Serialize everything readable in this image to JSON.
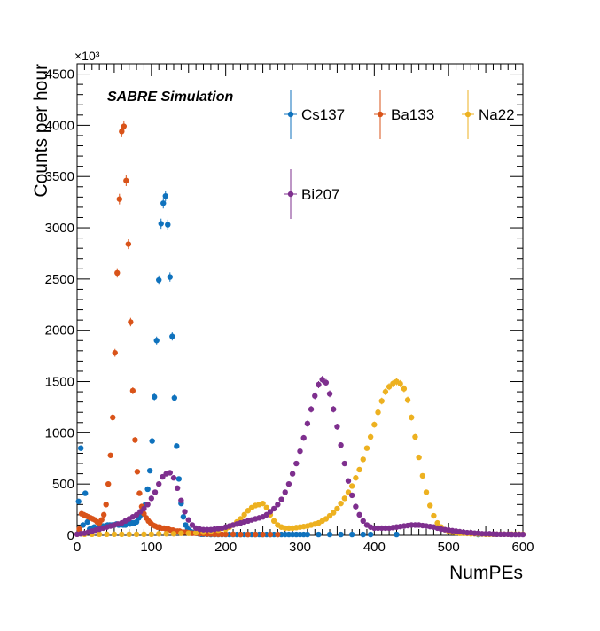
{
  "chart_data": {
    "type": "scatter",
    "title": "",
    "annotation": "SABRE Simulation",
    "xlabel": "NumPEs",
    "ylabel": "Counts per hour",
    "y_multiplier_label": "×10³",
    "xlim": [
      0,
      600
    ],
    "ylim": [
      0,
      4600
    ],
    "x_ticks": [
      0,
      100,
      200,
      300,
      400,
      500,
      600
    ],
    "y_ticks": [
      0,
      500,
      1000,
      1500,
      2000,
      2500,
      3000,
      3500,
      4000,
      4500
    ],
    "x_tick_labels": [
      "0",
      "100",
      "200",
      "300",
      "400",
      "500",
      "600"
    ],
    "y_tick_labels": [
      "0",
      "500",
      "1000",
      "1500",
      "2000",
      "2500",
      "3000",
      "3500",
      "4000",
      "4500"
    ],
    "grid": false,
    "legend_position": "top-right",
    "series": [
      {
        "name": "Cs137",
        "color": "#0f72bd",
        "x": [
          2,
          5,
          8,
          11,
          14,
          17,
          20,
          23,
          26,
          29,
          32,
          35,
          38,
          41,
          44,
          47,
          50,
          53,
          56,
          59,
          62,
          65,
          68,
          71,
          74,
          77,
          80,
          83,
          86,
          89,
          92,
          95,
          98,
          101,
          104,
          107,
          110,
          113,
          116,
          119,
          122,
          125,
          128,
          131,
          134,
          137,
          140,
          143,
          146,
          149,
          152,
          155,
          158,
          161,
          164,
          167,
          170,
          175,
          180,
          185,
          190,
          195,
          200,
          205,
          210,
          215,
          220,
          225,
          230,
          235,
          240,
          245,
          250,
          255,
          260,
          265,
          270,
          275,
          280,
          285,
          290,
          295,
          300,
          305,
          310,
          325,
          340,
          355,
          370,
          385,
          395,
          430,
          540
        ],
        "y": [
          330,
          850,
          100,
          410,
          130,
          60,
          70,
          80,
          60,
          80,
          80,
          90,
          90,
          100,
          100,
          100,
          100,
          110,
          100,
          110,
          100,
          100,
          120,
          110,
          120,
          120,
          130,
          170,
          200,
          280,
          300,
          450,
          630,
          920,
          1350,
          1900,
          2490,
          3040,
          3240,
          3310,
          3030,
          2520,
          1940,
          1340,
          870,
          550,
          310,
          180,
          100,
          60,
          40,
          30,
          25,
          20,
          15,
          10,
          10,
          10,
          8,
          8,
          8,
          8,
          8,
          8,
          8,
          8,
          8,
          8,
          8,
          8,
          8,
          8,
          8,
          8,
          8,
          8,
          8,
          8,
          8,
          8,
          8,
          8,
          8,
          8,
          8,
          8,
          8,
          8,
          8,
          8,
          8,
          8,
          8
        ]
      },
      {
        "name": "Ba133",
        "color": "#d95319",
        "x": [
          3,
          6,
          9,
          12,
          15,
          18,
          21,
          24,
          27,
          30,
          33,
          36,
          39,
          42,
          45,
          48,
          51,
          54,
          57,
          60,
          63,
          66,
          69,
          72,
          75,
          78,
          81,
          84,
          87,
          90,
          93,
          96,
          99,
          102,
          105,
          108,
          111,
          114,
          117,
          120,
          123,
          126,
          129,
          132,
          135,
          138,
          141,
          144,
          147,
          150,
          155,
          160,
          165,
          170,
          175,
          180,
          185,
          190,
          195,
          200,
          210,
          220,
          230,
          240,
          250,
          260,
          270
        ],
        "y": [
          60,
          210,
          200,
          190,
          180,
          170,
          160,
          150,
          130,
          120,
          150,
          200,
          300,
          500,
          780,
          1150,
          1780,
          2560,
          3280,
          3940,
          3990,
          3460,
          2840,
          2080,
          1410,
          930,
          620,
          410,
          280,
          210,
          170,
          140,
          120,
          100,
          90,
          80,
          80,
          70,
          70,
          60,
          60,
          50,
          50,
          40,
          40,
          40,
          30,
          30,
          30,
          25,
          20,
          20,
          15,
          15,
          12,
          12,
          10,
          10,
          10,
          10,
          10,
          8,
          8,
          8,
          8,
          8,
          8
        ]
      },
      {
        "name": "Na22",
        "color": "#edb120",
        "x": [
          0,
          10,
          20,
          30,
          40,
          50,
          60,
          70,
          80,
          90,
          100,
          110,
          120,
          130,
          140,
          150,
          160,
          170,
          180,
          190,
          200,
          205,
          210,
          215,
          220,
          225,
          230,
          235,
          240,
          245,
          250,
          255,
          260,
          265,
          270,
          275,
          280,
          285,
          290,
          295,
          300,
          305,
          310,
          315,
          320,
          325,
          330,
          335,
          340,
          345,
          350,
          355,
          360,
          365,
          370,
          375,
          380,
          385,
          390,
          395,
          400,
          405,
          410,
          415,
          420,
          425,
          430,
          435,
          440,
          445,
          450,
          455,
          460,
          465,
          470,
          475,
          480,
          485,
          490,
          495,
          500,
          505,
          510,
          515,
          520,
          525,
          530,
          535,
          540,
          545,
          550,
          555,
          560,
          565,
          570,
          575,
          580,
          585,
          590,
          595,
          600
        ],
        "y": [
          10,
          10,
          10,
          10,
          10,
          10,
          10,
          10,
          10,
          10,
          10,
          15,
          15,
          15,
          20,
          20,
          25,
          30,
          40,
          50,
          60,
          80,
          100,
          130,
          160,
          200,
          240,
          270,
          290,
          300,
          310,
          270,
          200,
          140,
          100,
          80,
          70,
          70,
          70,
          75,
          80,
          85,
          90,
          100,
          110,
          120,
          140,
          160,
          190,
          220,
          260,
          310,
          360,
          420,
          480,
          560,
          640,
          740,
          850,
          960,
          1080,
          1200,
          1310,
          1400,
          1450,
          1480,
          1500,
          1480,
          1430,
          1320,
          1150,
          960,
          760,
          580,
          420,
          290,
          190,
          120,
          80,
          55,
          40,
          30,
          25,
          20,
          20,
          18,
          15,
          15,
          12,
          12,
          10,
          10,
          10,
          10,
          10,
          10,
          10,
          10,
          10,
          10,
          10
        ]
      },
      {
        "name": "Bi207",
        "color": "#7e2f8e",
        "x": [
          0,
          5,
          10,
          15,
          20,
          25,
          30,
          35,
          40,
          45,
          50,
          55,
          60,
          65,
          70,
          75,
          80,
          85,
          90,
          95,
          100,
          105,
          110,
          115,
          120,
          125,
          130,
          135,
          140,
          145,
          150,
          155,
          160,
          165,
          170,
          175,
          180,
          185,
          190,
          195,
          200,
          205,
          210,
          215,
          220,
          225,
          230,
          235,
          240,
          245,
          250,
          255,
          260,
          265,
          270,
          275,
          280,
          285,
          290,
          295,
          300,
          305,
          310,
          315,
          320,
          325,
          330,
          335,
          340,
          345,
          350,
          355,
          360,
          365,
          370,
          375,
          380,
          385,
          390,
          395,
          400,
          405,
          410,
          415,
          420,
          425,
          430,
          435,
          440,
          445,
          450,
          455,
          460,
          465,
          470,
          475,
          480,
          485,
          490,
          495,
          500,
          505,
          510,
          515,
          520,
          525,
          530,
          535,
          540,
          545,
          550,
          555,
          560,
          565,
          570,
          575,
          580,
          585,
          590,
          595,
          600
        ],
        "y": [
          10,
          15,
          20,
          30,
          40,
          50,
          60,
          70,
          80,
          90,
          100,
          110,
          120,
          140,
          160,
          180,
          200,
          230,
          260,
          300,
          360,
          420,
          500,
          570,
          600,
          610,
          560,
          460,
          340,
          230,
          150,
          100,
          70,
          60,
          55,
          55,
          55,
          60,
          65,
          70,
          80,
          90,
          100,
          110,
          120,
          130,
          140,
          150,
          160,
          170,
          180,
          200,
          230,
          260,
          300,
          350,
          420,
          500,
          600,
          700,
          820,
          950,
          1090,
          1230,
          1360,
          1470,
          1520,
          1490,
          1380,
          1230,
          1060,
          880,
          700,
          530,
          390,
          280,
          200,
          140,
          100,
          80,
          70,
          70,
          70,
          70,
          70,
          75,
          80,
          85,
          90,
          95,
          100,
          100,
          100,
          95,
          90,
          85,
          80,
          70,
          60,
          55,
          50,
          45,
          40,
          35,
          30,
          25,
          25,
          20,
          20,
          15,
          15,
          15,
          12,
          10,
          10,
          10,
          10,
          8,
          8,
          8,
          8
        ]
      }
    ]
  }
}
